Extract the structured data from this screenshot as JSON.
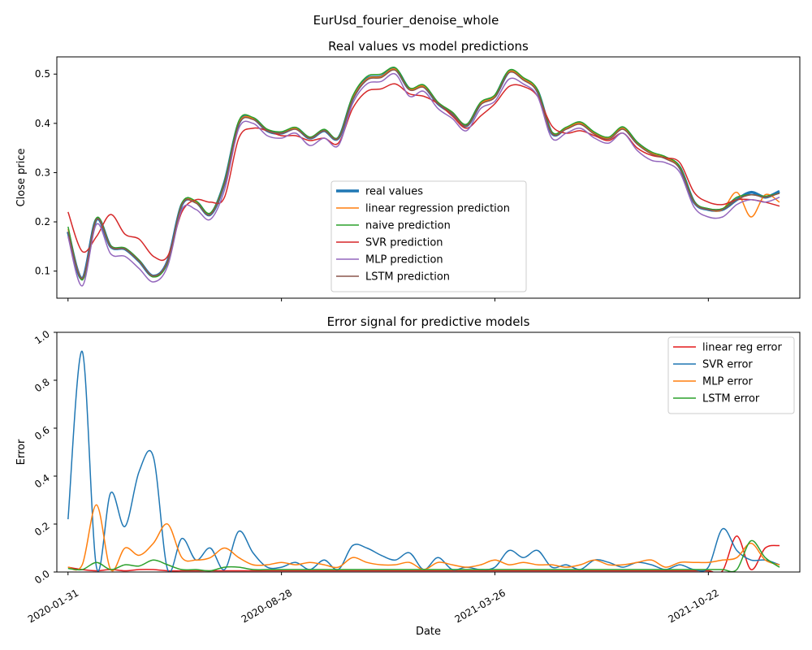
{
  "figure": {
    "suptitle": "EurUsd_fourier_denoise_whole"
  },
  "chart_data": [
    {
      "type": "line",
      "title": "Real values vs model predictions",
      "xlabel": "",
      "ylabel": "Close price",
      "xlim": [
        "2020-01-20",
        "2022-01-20"
      ],
      "ylim": [
        0.045,
        0.535
      ],
      "yticks": [
        "0.1",
        "0.2",
        "0.3",
        "0.4",
        "0.5"
      ],
      "ytick_values": [
        0.1,
        0.2,
        0.3,
        0.4,
        0.5
      ],
      "legend_position": "lower-center",
      "grid": false,
      "x": [
        "2020-01-31",
        "2020-02-14",
        "2020-02-28",
        "2020-03-13",
        "2020-03-27",
        "2020-04-10",
        "2020-04-24",
        "2020-05-08",
        "2020-05-22",
        "2020-06-05",
        "2020-06-19",
        "2020-07-03",
        "2020-07-17",
        "2020-07-31",
        "2020-08-14",
        "2020-08-28",
        "2020-09-11",
        "2020-09-25",
        "2020-10-09",
        "2020-10-23",
        "2020-11-06",
        "2020-11-20",
        "2020-12-04",
        "2020-12-18",
        "2021-01-01",
        "2021-01-15",
        "2021-01-29",
        "2021-02-12",
        "2021-02-26",
        "2021-03-12",
        "2021-03-26",
        "2021-04-09",
        "2021-04-23",
        "2021-05-07",
        "2021-05-21",
        "2021-06-04",
        "2021-06-18",
        "2021-07-02",
        "2021-07-16",
        "2021-07-30",
        "2021-08-13",
        "2021-08-27",
        "2021-09-10",
        "2021-09-24",
        "2021-10-08",
        "2021-10-22",
        "2021-11-05",
        "2021-11-19",
        "2021-12-03",
        "2021-12-17",
        "2021-12-31"
      ],
      "series": [
        {
          "name": "real values",
          "color": "#1f77b4",
          "width": 3.5,
          "values": [
            0.18,
            0.085,
            0.205,
            0.15,
            0.145,
            0.12,
            0.09,
            0.12,
            0.235,
            0.24,
            0.215,
            0.28,
            0.4,
            0.41,
            0.385,
            0.38,
            0.39,
            0.37,
            0.385,
            0.37,
            0.45,
            0.49,
            0.495,
            0.51,
            0.47,
            0.475,
            0.44,
            0.42,
            0.395,
            0.44,
            0.455,
            0.505,
            0.49,
            0.465,
            0.38,
            0.39,
            0.4,
            0.38,
            0.37,
            0.39,
            0.36,
            0.34,
            0.33,
            0.31,
            0.24,
            0.225,
            0.225,
            0.245,
            0.26,
            0.25,
            0.262
          ]
        },
        {
          "name": "linear regression prediction",
          "color": "#ff7f0e",
          "width": 1.5,
          "values": [
            0.185,
            0.085,
            0.205,
            0.15,
            0.145,
            0.12,
            0.09,
            0.12,
            0.235,
            0.24,
            0.215,
            0.28,
            0.4,
            0.41,
            0.385,
            0.38,
            0.39,
            0.37,
            0.385,
            0.37,
            0.45,
            0.49,
            0.495,
            0.51,
            0.47,
            0.475,
            0.44,
            0.42,
            0.395,
            0.44,
            0.455,
            0.505,
            0.49,
            0.465,
            0.38,
            0.39,
            0.4,
            0.38,
            0.37,
            0.39,
            0.36,
            0.34,
            0.33,
            0.31,
            0.24,
            0.225,
            0.225,
            0.26,
            0.21,
            0.255,
            0.24
          ]
        },
        {
          "name": "naive prediction",
          "color": "#2ca02c",
          "width": 1.5,
          "values": [
            0.19,
            0.082,
            0.208,
            0.152,
            0.147,
            0.122,
            0.088,
            0.118,
            0.238,
            0.242,
            0.218,
            0.282,
            0.405,
            0.412,
            0.388,
            0.383,
            0.392,
            0.372,
            0.388,
            0.372,
            0.455,
            0.495,
            0.5,
            0.513,
            0.472,
            0.478,
            0.443,
            0.423,
            0.398,
            0.443,
            0.458,
            0.508,
            0.493,
            0.468,
            0.383,
            0.392,
            0.403,
            0.382,
            0.372,
            0.393,
            0.362,
            0.342,
            0.332,
            0.312,
            0.242,
            0.227,
            0.227,
            0.25,
            0.255,
            0.252,
            0.258
          ]
        },
        {
          "name": "SVR prediction",
          "color": "#d62728",
          "width": 1.5,
          "values": [
            0.22,
            0.14,
            0.17,
            0.215,
            0.175,
            0.165,
            0.13,
            0.13,
            0.22,
            0.245,
            0.24,
            0.25,
            0.37,
            0.39,
            0.385,
            0.375,
            0.375,
            0.365,
            0.37,
            0.36,
            0.43,
            0.465,
            0.47,
            0.48,
            0.46,
            0.455,
            0.44,
            0.415,
            0.39,
            0.415,
            0.44,
            0.475,
            0.475,
            0.455,
            0.395,
            0.38,
            0.385,
            0.375,
            0.365,
            0.38,
            0.35,
            0.335,
            0.33,
            0.32,
            0.26,
            0.24,
            0.235,
            0.245,
            0.245,
            0.24,
            0.232
          ]
        },
        {
          "name": "MLP prediction",
          "color": "#9467bd",
          "width": 1.5,
          "values": [
            0.17,
            0.07,
            0.195,
            0.135,
            0.13,
            0.105,
            0.078,
            0.11,
            0.225,
            0.225,
            0.205,
            0.265,
            0.39,
            0.4,
            0.375,
            0.37,
            0.38,
            0.355,
            0.37,
            0.355,
            0.44,
            0.48,
            0.485,
            0.5,
            0.455,
            0.465,
            0.43,
            0.41,
            0.385,
            0.43,
            0.445,
            0.49,
            0.48,
            0.455,
            0.37,
            0.38,
            0.39,
            0.37,
            0.36,
            0.38,
            0.345,
            0.325,
            0.32,
            0.3,
            0.23,
            0.21,
            0.21,
            0.235,
            0.245,
            0.24,
            0.25
          ]
        },
        {
          "name": "LSTM prediction",
          "color": "#8c564b",
          "width": 1.5,
          "values": [
            0.18,
            0.085,
            0.205,
            0.15,
            0.145,
            0.12,
            0.09,
            0.12,
            0.235,
            0.238,
            0.215,
            0.278,
            0.398,
            0.408,
            0.385,
            0.38,
            0.388,
            0.37,
            0.385,
            0.37,
            0.448,
            0.488,
            0.493,
            0.508,
            0.468,
            0.473,
            0.44,
            0.42,
            0.395,
            0.438,
            0.453,
            0.503,
            0.488,
            0.463,
            0.38,
            0.388,
            0.398,
            0.378,
            0.368,
            0.388,
            0.358,
            0.338,
            0.328,
            0.308,
            0.24,
            0.225,
            0.225,
            0.245,
            0.255,
            0.25,
            0.258
          ]
        }
      ]
    },
    {
      "type": "line",
      "title": "Error signal for predictive models",
      "xlabel": "Date",
      "ylabel": "Error",
      "xlim": [
        "2020-01-20",
        "2022-01-20"
      ],
      "ylim": [
        0.0,
        1.0
      ],
      "yticks": [
        "0.0",
        "0.2",
        "0.4",
        "0.6",
        "0.8",
        "1.0"
      ],
      "ytick_values": [
        0.0,
        0.2,
        0.4,
        0.6,
        0.8,
        1.0
      ],
      "xticks": [
        "2020-01-31",
        "2020-08-28",
        "2021-03-26",
        "2021-10-22"
      ],
      "legend_position": "upper-right",
      "grid": false,
      "x": [
        "2020-01-31",
        "2020-02-14",
        "2020-02-28",
        "2020-03-13",
        "2020-03-27",
        "2020-04-10",
        "2020-04-24",
        "2020-05-08",
        "2020-05-22",
        "2020-06-05",
        "2020-06-19",
        "2020-07-03",
        "2020-07-17",
        "2020-07-31",
        "2020-08-14",
        "2020-08-28",
        "2020-09-11",
        "2020-09-25",
        "2020-10-09",
        "2020-10-23",
        "2020-11-06",
        "2020-11-20",
        "2020-12-04",
        "2020-12-18",
        "2021-01-01",
        "2021-01-15",
        "2021-01-29",
        "2021-02-12",
        "2021-02-26",
        "2021-03-12",
        "2021-03-26",
        "2021-04-09",
        "2021-04-23",
        "2021-05-07",
        "2021-05-21",
        "2021-06-04",
        "2021-06-18",
        "2021-07-02",
        "2021-07-16",
        "2021-07-30",
        "2021-08-13",
        "2021-08-27",
        "2021-09-10",
        "2021-09-24",
        "2021-10-08",
        "2021-10-22",
        "2021-11-05",
        "2021-11-19",
        "2021-12-03",
        "2021-12-17",
        "2021-12-31"
      ],
      "series": [
        {
          "name": "linear reg error",
          "color": "#e31a1c",
          "width": 1.5,
          "values": [
            0.02,
            0.01,
            0.005,
            0.01,
            0.005,
            0.01,
            0.01,
            0.005,
            0.005,
            0.005,
            0.005,
            0.005,
            0.005,
            0.005,
            0.005,
            0.005,
            0.005,
            0.005,
            0.005,
            0.005,
            0.005,
            0.005,
            0.005,
            0.005,
            0.005,
            0.005,
            0.005,
            0.005,
            0.005,
            0.005,
            0.005,
            0.005,
            0.005,
            0.005,
            0.005,
            0.005,
            0.005,
            0.005,
            0.005,
            0.005,
            0.005,
            0.005,
            0.005,
            0.005,
            0.005,
            0.005,
            0.005,
            0.15,
            0.01,
            0.1,
            0.11
          ]
        },
        {
          "name": "SVR error",
          "color": "#1f77b4",
          "width": 1.5,
          "values": [
            0.22,
            0.92,
            0.02,
            0.33,
            0.19,
            0.42,
            0.48,
            0.01,
            0.14,
            0.05,
            0.1,
            0.01,
            0.17,
            0.08,
            0.02,
            0.02,
            0.04,
            0.01,
            0.05,
            0.01,
            0.11,
            0.1,
            0.07,
            0.05,
            0.08,
            0.01,
            0.06,
            0.01,
            0.02,
            0.01,
            0.02,
            0.09,
            0.06,
            0.09,
            0.02,
            0.03,
            0.01,
            0.05,
            0.04,
            0.02,
            0.04,
            0.03,
            0.01,
            0.03,
            0.01,
            0.02,
            0.18,
            0.09,
            0.05,
            0.05,
            0.03
          ]
        },
        {
          "name": "MLP error",
          "color": "#ff7f0e",
          "width": 1.5,
          "values": [
            0.02,
            0.03,
            0.28,
            0.01,
            0.1,
            0.07,
            0.12,
            0.2,
            0.06,
            0.05,
            0.06,
            0.1,
            0.06,
            0.03,
            0.03,
            0.04,
            0.03,
            0.04,
            0.03,
            0.02,
            0.06,
            0.04,
            0.03,
            0.03,
            0.04,
            0.01,
            0.04,
            0.03,
            0.02,
            0.03,
            0.05,
            0.03,
            0.04,
            0.03,
            0.03,
            0.02,
            0.03,
            0.05,
            0.03,
            0.03,
            0.04,
            0.05,
            0.02,
            0.04,
            0.04,
            0.04,
            0.05,
            0.06,
            0.12,
            0.05,
            0.03
          ]
        },
        {
          "name": "LSTM error",
          "color": "#2ca02c",
          "width": 1.5,
          "values": [
            0.015,
            0.01,
            0.04,
            0.01,
            0.03,
            0.025,
            0.05,
            0.03,
            0.01,
            0.01,
            0.005,
            0.02,
            0.02,
            0.01,
            0.01,
            0.01,
            0.01,
            0.01,
            0.01,
            0.01,
            0.01,
            0.01,
            0.01,
            0.01,
            0.01,
            0.01,
            0.01,
            0.01,
            0.01,
            0.01,
            0.01,
            0.01,
            0.01,
            0.01,
            0.01,
            0.01,
            0.01,
            0.01,
            0.01,
            0.01,
            0.01,
            0.01,
            0.01,
            0.01,
            0.01,
            0.01,
            0.01,
            0.01,
            0.13,
            0.06,
            0.02
          ]
        }
      ]
    }
  ]
}
